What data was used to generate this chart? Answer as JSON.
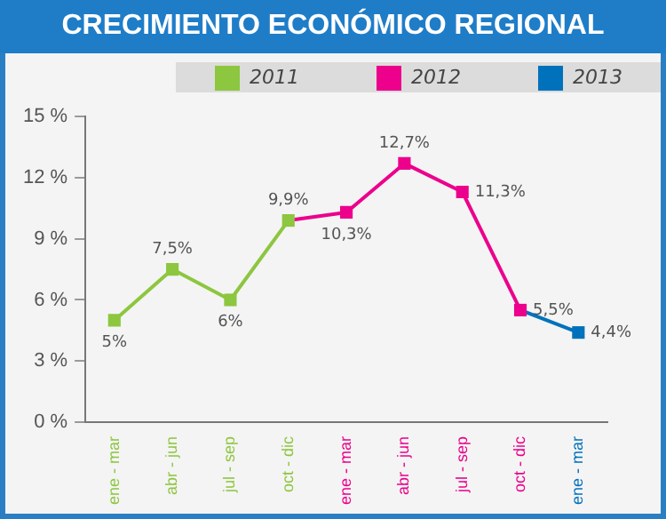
{
  "chart_data": {
    "type": "line",
    "title": "CRECIMIENTO ECONÓMICO REGIONAL",
    "categories": [
      "ene - mar",
      "abr - jun",
      "jul - sep",
      "oct - dic",
      "ene - mar",
      "abr - jun",
      "jul - sep",
      "oct - dic",
      "ene - mar"
    ],
    "series": [
      {
        "name": "2011",
        "color": "#8dc63f",
        "values": [
          5,
          7.5,
          6,
          9.9,
          null,
          null,
          null,
          null,
          null
        ],
        "value_labels": [
          "5%",
          "7,5%",
          "6%",
          "9,9%",
          null,
          null,
          null,
          null,
          null
        ]
      },
      {
        "name": "2012",
        "color": "#ec008c",
        "values": [
          null,
          null,
          null,
          null,
          10.3,
          12.7,
          11.3,
          5.5,
          null
        ],
        "value_labels": [
          null,
          null,
          null,
          null,
          "10,3%",
          "12,7%",
          "11,3%",
          "5,5%",
          null
        ]
      },
      {
        "name": "2013",
        "color": "#0072bc",
        "values": [
          null,
          null,
          null,
          null,
          null,
          null,
          null,
          null,
          4.4
        ],
        "value_labels": [
          null,
          null,
          null,
          null,
          null,
          null,
          null,
          null,
          "4,4%"
        ]
      }
    ],
    "ylim": [
      0,
      15
    ],
    "yticks": [
      {
        "value": 0,
        "label": "0 %"
      },
      {
        "value": 3,
        "label": "3 %"
      },
      {
        "value": 6,
        "label": "6 %"
      },
      {
        "value": 9,
        "label": "9 %"
      },
      {
        "value": 12,
        "label": "12 %"
      },
      {
        "value": 15,
        "label": "15 %"
      }
    ],
    "grid": false,
    "legend": "top",
    "marker": "square",
    "line_style": "solid"
  }
}
